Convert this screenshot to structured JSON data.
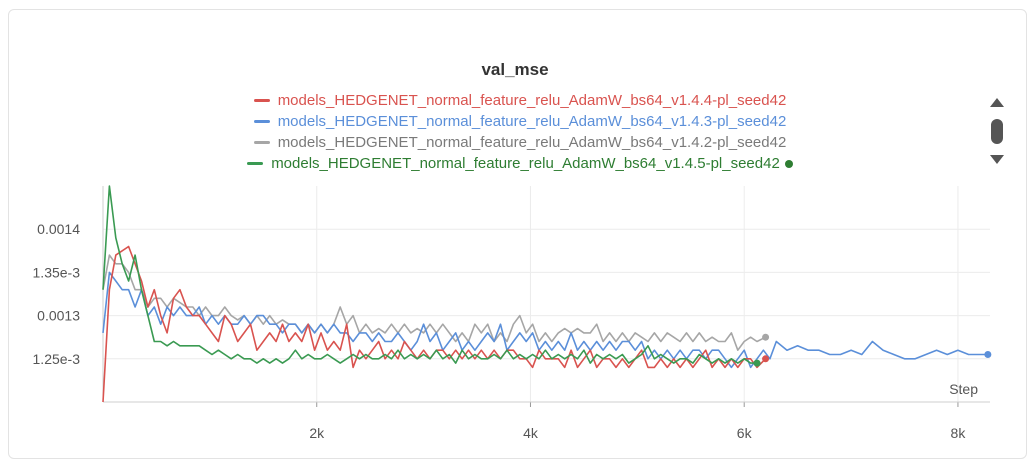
{
  "chart_data": {
    "type": "line",
    "title": "val_mse",
    "xlabel": "Step",
    "ylabel": "",
    "xlim": [
      0,
      8300
    ],
    "ylim": [
      0.0012,
      0.00145
    ],
    "x_ticks": [
      2000,
      4000,
      6000,
      8000
    ],
    "x_tick_labels": [
      "2k",
      "4k",
      "6k",
      "8k"
    ],
    "y_ticks": [
      0.00125,
      0.0013,
      0.00135,
      0.0014
    ],
    "y_tick_labels": [
      "1.25e-3",
      "0.0013",
      "1.35e-3",
      "0.0014"
    ],
    "grid": true,
    "legend_position": "top-center",
    "series": [
      {
        "name": "models_HEDGENET_normal_feature_relu_AdamW_bs64_v1.4.4-pl_seed42",
        "color": "#d9534f",
        "x": [
          0,
          60,
          120,
          240,
          300,
          360,
          420,
          480,
          540,
          600,
          660,
          720,
          780,
          840,
          900,
          960,
          1020,
          1080,
          1140,
          1200,
          1260,
          1320,
          1380,
          1440,
          1500,
          1560,
          1620,
          1680,
          1740,
          1800,
          1860,
          1920,
          1980,
          2040,
          2100,
          2160,
          2220,
          2280,
          2340,
          2400,
          2460,
          2520,
          2580,
          2640,
          2700,
          2760,
          2820,
          2880,
          2940,
          3000,
          3060,
          3120,
          3180,
          3240,
          3300,
          3360,
          3420,
          3480,
          3540,
          3600,
          3660,
          3720,
          3780,
          3840,
          3900,
          3960,
          4020,
          4080,
          4140,
          4200,
          4260,
          4320,
          4380,
          4440,
          4500,
          4560,
          4620,
          4680,
          4740,
          4800,
          4860,
          4920,
          4980,
          5040,
          5100,
          5160,
          5220,
          5280,
          5340,
          5400,
          5460,
          5520,
          5580,
          5640,
          5700,
          5760,
          5820,
          5880,
          5940,
          6000,
          6060,
          6120,
          6200
        ],
        "y": [
          0.0012,
          0.00133,
          0.00137,
          0.00138,
          0.00136,
          0.00134,
          0.00131,
          0.00133,
          0.0013,
          0.00128,
          0.00132,
          0.00133,
          0.00131,
          0.0013,
          0.0013,
          0.00129,
          0.00128,
          0.00127,
          0.0013,
          0.00129,
          0.00127,
          0.00128,
          0.00129,
          0.00126,
          0.00127,
          0.00128,
          0.00127,
          0.00129,
          0.00127,
          0.00128,
          0.00127,
          0.00129,
          0.00126,
          0.00128,
          0.00126,
          0.00127,
          0.00126,
          0.00129,
          0.00124,
          0.00126,
          0.00125,
          0.00126,
          0.00127,
          0.00125,
          0.00126,
          0.00125,
          0.00127,
          0.00126,
          0.00125,
          0.00126,
          0.00125,
          0.00126,
          0.00126,
          0.00125,
          0.00126,
          0.00125,
          0.00126,
          0.00125,
          0.00126,
          0.00125,
          0.00126,
          0.00125,
          0.00126,
          0.00126,
          0.00125,
          0.00125,
          0.00124,
          0.00126,
          0.00125,
          0.00125,
          0.00125,
          0.00124,
          0.00126,
          0.00124,
          0.00125,
          0.00126,
          0.00124,
          0.00125,
          0.00125,
          0.00124,
          0.00125,
          0.00124,
          0.00125,
          0.00126,
          0.00124,
          0.00124,
          0.00125,
          0.00124,
          0.00125,
          0.00124,
          0.00125,
          0.00124,
          0.00125,
          0.00126,
          0.00124,
          0.00125,
          0.00124,
          0.00125,
          0.00124,
          0.00125,
          0.00125,
          0.00124,
          0.00125
        ]
      },
      {
        "name": "models_HEDGENET_normal_feature_relu_AdamW_bs64_v1.4.3-pl_seed42",
        "color": "#5b8fd9",
        "x": [
          0,
          60,
          120,
          180,
          240,
          300,
          360,
          420,
          480,
          540,
          600,
          660,
          720,
          780,
          840,
          900,
          960,
          1020,
          1080,
          1140,
          1200,
          1260,
          1320,
          1380,
          1440,
          1500,
          1560,
          1620,
          1680,
          1740,
          1800,
          1860,
          1920,
          1980,
          2040,
          2100,
          2160,
          2220,
          2280,
          2340,
          2400,
          2460,
          2520,
          2580,
          2640,
          2700,
          2760,
          2820,
          2880,
          2940,
          3000,
          3060,
          3120,
          3180,
          3240,
          3300,
          3360,
          3420,
          3480,
          3540,
          3600,
          3660,
          3720,
          3780,
          3840,
          3900,
          3960,
          4020,
          4080,
          4140,
          4200,
          4260,
          4320,
          4380,
          4440,
          4500,
          4560,
          4620,
          4680,
          4740,
          4800,
          4860,
          4920,
          4980,
          5040,
          5100,
          5160,
          5220,
          5280,
          5340,
          5400,
          5460,
          5520,
          5580,
          5640,
          5700,
          5760,
          5820,
          5880,
          5940,
          6000,
          6060,
          6120,
          6180,
          6240,
          6300,
          6400,
          6500,
          6600,
          6700,
          6800,
          6900,
          7000,
          7100,
          7200,
          7300,
          7400,
          7500,
          7600,
          7700,
          7800,
          7900,
          8000,
          8100,
          8200,
          8280
        ],
        "y": [
          0.00128,
          0.00135,
          0.00134,
          0.00133,
          0.00133,
          0.00131,
          0.00133,
          0.0013,
          0.00131,
          0.00129,
          0.00131,
          0.0013,
          0.00131,
          0.0013,
          0.0013,
          0.00131,
          0.00129,
          0.0013,
          0.00129,
          0.0013,
          0.00129,
          0.00129,
          0.0013,
          0.00129,
          0.0013,
          0.0013,
          0.00129,
          0.00129,
          0.00128,
          0.00129,
          0.00129,
          0.00128,
          0.00129,
          0.00128,
          0.00129,
          0.00128,
          0.00129,
          0.00128,
          0.00128,
          0.00127,
          0.00128,
          0.00128,
          0.00127,
          0.00128,
          0.00127,
          0.00127,
          0.00128,
          0.00127,
          0.00126,
          0.00127,
          0.00129,
          0.00127,
          0.00128,
          0.00126,
          0.00127,
          0.00128,
          0.00126,
          0.00127,
          0.00126,
          0.00127,
          0.00128,
          0.00127,
          0.00129,
          0.00126,
          0.00127,
          0.00128,
          0.00127,
          0.00128,
          0.00126,
          0.00127,
          0.00126,
          0.00127,
          0.00126,
          0.00128,
          0.00126,
          0.00127,
          0.00126,
          0.00127,
          0.00126,
          0.00127,
          0.00126,
          0.00127,
          0.00127,
          0.00126,
          0.00127,
          0.00125,
          0.00126,
          0.00125,
          0.00126,
          0.00125,
          0.00126,
          0.00125,
          0.00126,
          0.00126,
          0.00125,
          0.00126,
          0.00126,
          0.00125,
          0.00124,
          0.00125,
          0.00126,
          0.00124,
          0.00125,
          0.00126,
          0.00125,
          0.00127,
          0.00126,
          0.001265,
          0.00126,
          0.00126,
          0.001255,
          0.001255,
          0.00126,
          0.001255,
          0.00127,
          0.00126,
          0.001255,
          0.00125,
          0.00125,
          0.001255,
          0.00126,
          0.001255,
          0.00126,
          0.001255,
          0.001255,
          0.001255
        ]
      },
      {
        "name": "models_HEDGENET_normal_feature_relu_AdamW_bs64_v1.4.2-pl_seed42",
        "color": "#a6a6a6",
        "x": [
          0,
          60,
          120,
          180,
          240,
          300,
          360,
          420,
          480,
          540,
          600,
          660,
          720,
          780,
          840,
          900,
          960,
          1020,
          1080,
          1140,
          1200,
          1260,
          1320,
          1380,
          1440,
          1500,
          1560,
          1620,
          1680,
          1740,
          1800,
          1860,
          1920,
          1980,
          2040,
          2100,
          2160,
          2220,
          2280,
          2340,
          2400,
          2460,
          2520,
          2580,
          2640,
          2700,
          2760,
          2820,
          2880,
          2940,
          3000,
          3060,
          3120,
          3180,
          3240,
          3300,
          3360,
          3420,
          3480,
          3540,
          3600,
          3660,
          3720,
          3780,
          3840,
          3900,
          3960,
          4020,
          4080,
          4140,
          4200,
          4260,
          4320,
          4380,
          4440,
          4500,
          4560,
          4620,
          4680,
          4740,
          4800,
          4860,
          4920,
          4980,
          5040,
          5100,
          5160,
          5220,
          5280,
          5340,
          5400,
          5460,
          5520,
          5580,
          5640,
          5700,
          5760,
          5820,
          5880,
          5940,
          6000,
          6060,
          6120,
          6200
        ],
        "y": [
          0.00133,
          0.00137,
          0.00136,
          0.00136,
          0.00135,
          0.00133,
          0.00133,
          0.00131,
          0.00132,
          0.00132,
          0.00131,
          0.00132,
          0.001315,
          0.00131,
          0.00131,
          0.0013,
          0.00131,
          0.0013,
          0.0013,
          0.00131,
          0.0013,
          0.001295,
          0.0013,
          0.00129,
          0.0013,
          0.00129,
          0.0013,
          0.00129,
          0.001295,
          0.00129,
          0.00129,
          0.00128,
          0.00129,
          0.00128,
          0.00129,
          0.00128,
          0.00129,
          0.00131,
          0.00129,
          0.0013,
          0.00128,
          0.00129,
          0.00128,
          0.001285,
          0.00128,
          0.00129,
          0.00128,
          0.00129,
          0.00128,
          0.001285,
          0.00128,
          0.00129,
          0.00128,
          0.00129,
          0.00128,
          0.00127,
          0.00128,
          0.00127,
          0.00129,
          0.00128,
          0.00129,
          0.00127,
          0.00128,
          0.00127,
          0.00129,
          0.0013,
          0.00128,
          0.00129,
          0.00127,
          0.00128,
          0.00127,
          0.00128,
          0.001285,
          0.00128,
          0.001285,
          0.00128,
          0.00128,
          0.00129,
          0.00127,
          0.00128,
          0.00127,
          0.00128,
          0.00127,
          0.00128,
          0.001275,
          0.00127,
          0.00128,
          0.00127,
          0.00128,
          0.001275,
          0.00127,
          0.00128,
          0.00127,
          0.00128,
          0.00127,
          0.001275,
          0.00127,
          0.00127,
          0.00128,
          0.00126,
          0.00127,
          0.001275,
          0.00127,
          0.001275
        ]
      },
      {
        "name": "models_HEDGENET_normal_feature_relu_AdamW_bs64_v1.4.5-pl_seed42",
        "color": "#3a9a52",
        "x": [
          0,
          60,
          120,
          180,
          240,
          300,
          360,
          420,
          480,
          540,
          600,
          660,
          720,
          780,
          840,
          900,
          960,
          1020,
          1080,
          1140,
          1200,
          1260,
          1320,
          1380,
          1440,
          1500,
          1560,
          1620,
          1680,
          1740,
          1800,
          1860,
          1920,
          1980,
          2040,
          2100,
          2160,
          2220,
          2280,
          2340,
          2400,
          2460,
          2520,
          2580,
          2640,
          2700,
          2760,
          2820,
          2880,
          2940,
          3000,
          3060,
          3120,
          3180,
          3240,
          3300,
          3360,
          3420,
          3480,
          3540,
          3600,
          3660,
          3720,
          3780,
          3840,
          3900,
          3960,
          4020,
          4080,
          4140,
          4200,
          4260,
          4320,
          4380,
          4440,
          4500,
          4560,
          4620,
          4680,
          4740,
          4800,
          4860,
          4920,
          4980,
          5040,
          5100,
          5160,
          5220,
          5280,
          5340,
          5400,
          5460,
          5520,
          5580,
          5640,
          5700,
          5760,
          5820,
          5880,
          5940,
          6000,
          6060,
          6120
        ],
        "y": [
          0.00133,
          0.00145,
          0.00139,
          0.00136,
          0.00134,
          0.00137,
          0.00133,
          0.0013,
          0.00127,
          0.00127,
          0.001265,
          0.00127,
          0.001265,
          0.001265,
          0.001265,
          0.001265,
          0.00126,
          0.001255,
          0.00126,
          0.001255,
          0.00125,
          0.001255,
          0.00125,
          0.00125,
          0.001245,
          0.00125,
          0.001245,
          0.00125,
          0.001245,
          0.00125,
          0.00126,
          0.00125,
          0.001255,
          0.00125,
          0.00125,
          0.001255,
          0.00125,
          0.001245,
          0.00125,
          0.001255,
          0.00125,
          0.001255,
          0.00125,
          0.00125,
          0.001255,
          0.00125,
          0.00126,
          0.00125,
          0.001255,
          0.00125,
          0.001255,
          0.00125,
          0.00126,
          0.00125,
          0.001255,
          0.001245,
          0.00126,
          0.00125,
          0.001255,
          0.00125,
          0.00125,
          0.001255,
          0.00125,
          0.00126,
          0.00125,
          0.001255,
          0.00125,
          0.001255,
          0.00125,
          0.00126,
          0.00125,
          0.001255,
          0.00125,
          0.001255,
          0.00125,
          0.00126,
          0.001245,
          0.001255,
          0.00125,
          0.001255,
          0.00125,
          0.001255,
          0.001245,
          0.00125,
          0.001255,
          0.001265,
          0.00125,
          0.001255,
          0.00125,
          0.001245,
          0.00125,
          0.00125,
          0.001245,
          0.001255,
          0.00125,
          0.001245,
          0.00125,
          0.001245,
          0.00125,
          0.001245,
          0.00125,
          0.001245,
          0.001245
        ]
      }
    ]
  },
  "scroller": {
    "up_icon": "triangle-up-icon",
    "thumb": "scroll-thumb",
    "down_icon": "triangle-down-icon"
  }
}
